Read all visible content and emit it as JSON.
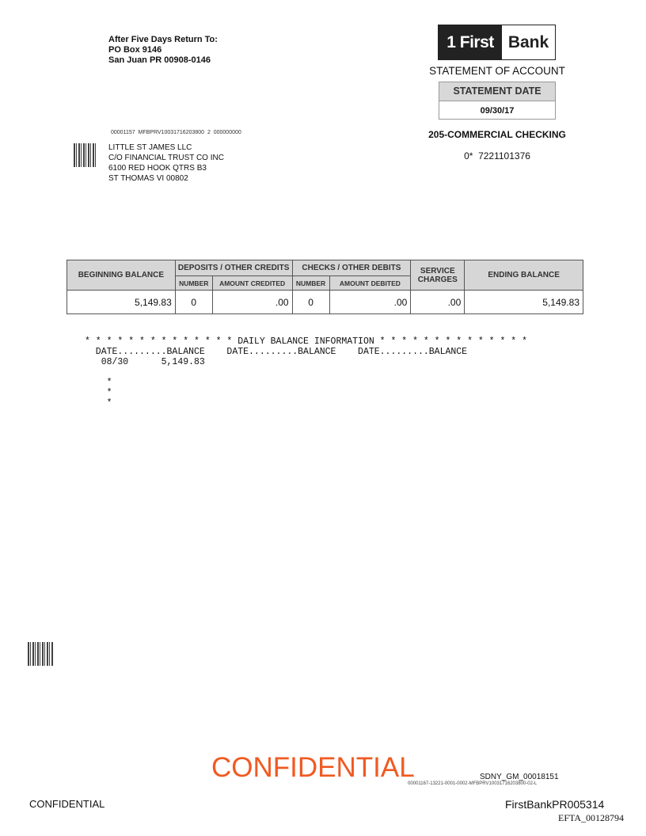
{
  "return_address": {
    "line1": "After Five Days Return To:",
    "line2": "PO Box 9146",
    "line3": "San Juan PR 00908-0146"
  },
  "logo": {
    "left": "1 First",
    "right": "Bank"
  },
  "statement_title": "STATEMENT OF ACCOUNT",
  "statement_date": {
    "label": "STATEMENT DATE",
    "value": "09/30/17"
  },
  "account_type": "205-COMMERCIAL CHECKING",
  "account_number": "0*  7221101376",
  "mail_code": "00001157  MFBPRV10031716203800  2  000000000",
  "recipient": {
    "line1": "LITTLE ST JAMES LLC",
    "line2": "C/O FINANCIAL TRUST CO INC",
    "line3": "6100 RED HOOK QTRS B3",
    "line4": "ST THOMAS VI  00802"
  },
  "summary": {
    "headers": {
      "beginning": "BEGINNING BALANCE",
      "deposits": "DEPOSITS / OTHER CREDITS",
      "checks": "CHECKS / OTHER DEBITS",
      "service": "SERVICE CHARGES",
      "ending": "ENDING BALANCE",
      "number1": "NUMBER",
      "amount_credited": "AMOUNT  CREDITED",
      "number2": "NUMBER",
      "amount_debited": "AMOUNT DEBITED"
    },
    "values": {
      "beginning": "5,149.83",
      "deposits_number": "0",
      "amount_credited": ".00",
      "checks_number": "0",
      "amount_debited": ".00",
      "service": ".00",
      "ending": "5,149.83"
    }
  },
  "daily_balance": {
    "title": "* * * * * * * * * * * * * * DAILY BALANCE INFORMATION * * * * * * * * * * * * * *",
    "header": "  DATE.........BALANCE    DATE.........BALANCE    DATE.........BALANCE",
    "rows": [
      "   08/30      5,149.83"
    ],
    "trailer": [
      "    *",
      "    *",
      "    *"
    ]
  },
  "footer": {
    "confidential_stamp": "CONFIDENTIAL",
    "sdny": "SDNY_GM_00018151",
    "tiny_code": "00001167-13221-0001-0002-MFBPRV10031716203800-02-L",
    "confidential": "CONFIDENTIAL",
    "bates": "FirstBankPR005314",
    "efta": "EFTA_00128794"
  },
  "colors": {
    "stamp": "#f05a22",
    "header_fill": "#d6d6d6"
  }
}
